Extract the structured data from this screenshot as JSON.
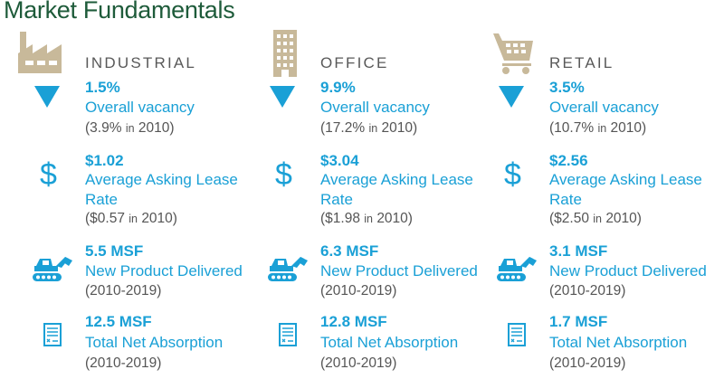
{
  "title": "Market Fundamentals",
  "colors": {
    "title": "#1e5b3a",
    "accent": "#1aa0d6",
    "icon_tan": "#c8b99a",
    "text_gray": "#555555"
  },
  "columns": [
    {
      "icon": "factory-icon",
      "label": "INDUSTRIAL",
      "metrics": [
        {
          "icon": "down-triangle-icon",
          "value": "1.5%",
          "label": "Overall vacancy",
          "note_value": "(3.9%",
          "note_in": "in",
          "note_year": "2010)"
        },
        {
          "icon": "dollar-icon",
          "value": "$1.02",
          "label": "Average Asking Lease Rate",
          "note_value": "($0.57",
          "note_in": "in",
          "note_year": "2010)"
        },
        {
          "icon": "bulldozer-icon",
          "value": "5.5 MSF",
          "label": "New Product Delivered",
          "note": "(2010-2019)"
        },
        {
          "icon": "document-icon",
          "value": "12.5 MSF",
          "label": "Total Net Absorption",
          "note": "(2010-2019)"
        }
      ]
    },
    {
      "icon": "office-building-icon",
      "label": "OFFICE",
      "metrics": [
        {
          "icon": "down-triangle-icon",
          "value": "9.9%",
          "label": "Overall vacancy",
          "note_value": "(17.2%",
          "note_in": "in",
          "note_year": "2010)"
        },
        {
          "icon": "dollar-icon",
          "value": "$3.04",
          "label": "Average Asking Lease Rate",
          "note_value": "($1.98",
          "note_in": "in",
          "note_year": "2010)"
        },
        {
          "icon": "bulldozer-icon",
          "value": "6.3 MSF",
          "label": "New Product Delivered",
          "note": "(2010-2019)"
        },
        {
          "icon": "document-icon",
          "value": "12.8 MSF",
          "label": "Total Net Absorption",
          "note": "(2010-2019)"
        }
      ]
    },
    {
      "icon": "shopping-cart-icon",
      "label": "RETAIL",
      "metrics": [
        {
          "icon": "down-triangle-icon",
          "value": "3.5%",
          "label": "Overall vacancy",
          "note_value": "(10.7%",
          "note_in": "in",
          "note_year": "2010)"
        },
        {
          "icon": "dollar-icon",
          "value": "$2.56",
          "label": "Average Asking Lease Rate",
          "note_value": "($2.50",
          "note_in": "in",
          "note_year": "2010)"
        },
        {
          "icon": "bulldozer-icon",
          "value": "3.1 MSF",
          "label": "New Product Delivered",
          "note": "(2010-2019)"
        },
        {
          "icon": "document-icon",
          "value": "1.7 MSF",
          "label": "Total Net Absorption",
          "note": "(2010-2019)"
        }
      ]
    }
  ]
}
